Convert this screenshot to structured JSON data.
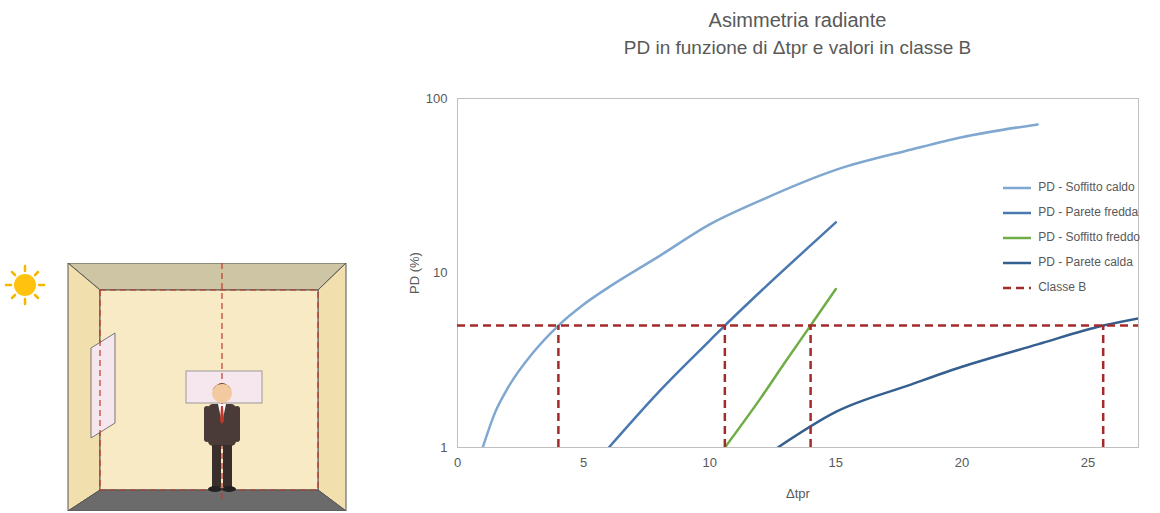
{
  "chart_data": {
    "type": "line",
    "title": "Asimmetria radiante",
    "subtitle": "PD in funzione di Δtpr e valori in classe B",
    "x_label": "Δtpr",
    "y_label": "PD (%)",
    "xlim": [
      0,
      27
    ],
    "xticks": [
      0,
      5,
      10,
      15,
      20,
      25
    ],
    "ylim": [
      1,
      100
    ],
    "yticks": [
      1,
      10,
      100
    ],
    "log": "y",
    "grid": false,
    "legend": "top-right",
    "series": [
      {
        "name": "PD - Soffitto caldo",
        "color": "#7fa7cf",
        "line_style": "solid",
        "x": [
          1,
          1.5,
          2,
          3,
          4,
          5,
          6,
          8,
          10,
          12,
          15,
          18,
          20,
          23
        ],
        "values": [
          1.0,
          1.6,
          2.2,
          3.5,
          5,
          6.6,
          8.3,
          12.5,
          19,
          26,
          39,
          51,
          60,
          71
        ]
      },
      {
        "name": "PD - Parete fredda",
        "color": "#4a78b0",
        "line_style": "solid",
        "x": [
          6,
          8,
          10,
          10.6,
          12,
          14,
          15
        ],
        "values": [
          1.0,
          2.1,
          4.1,
          5,
          7.8,
          14.4,
          19.5
        ]
      },
      {
        "name": "PD - Soffitto freddo",
        "color": "#70ad47",
        "line_style": "solid",
        "x": [
          10.6,
          12,
          13,
          14,
          15
        ],
        "values": [
          1.0,
          1.9,
          3.1,
          5,
          8.1
        ]
      },
      {
        "name": "PD - Parete calda",
        "color": "#355f8f",
        "line_style": "solid",
        "x": [
          12.7,
          15,
          18,
          20,
          23,
          25.6,
          27
        ],
        "values": [
          1.0,
          1.6,
          2.3,
          2.9,
          3.9,
          5,
          5.5
        ]
      },
      {
        "name": "Classe B",
        "type": "threshold",
        "color": "#a52a2a",
        "line_style": "dashed",
        "y": 5,
        "x": [
          4,
          10.6,
          14,
          25.6
        ]
      }
    ]
  }
}
